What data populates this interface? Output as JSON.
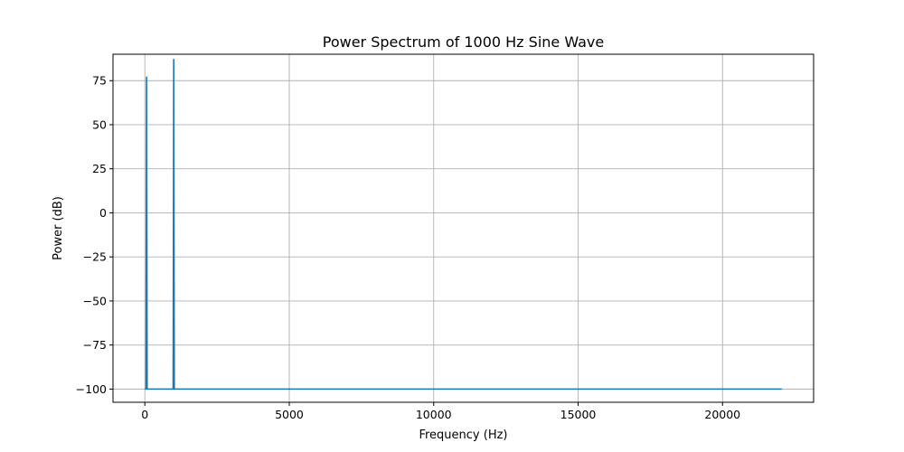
{
  "chart_data": {
    "type": "line",
    "title": "Power Spectrum of 1000 Hz Sine Wave",
    "xlabel": "Frequency (Hz)",
    "ylabel": "Power (dB)",
    "xlim": [
      -1102.5,
      23152.5
    ],
    "ylim": [
      -107.5,
      90
    ],
    "grid": true,
    "xticks": [
      0,
      5000,
      10000,
      15000,
      20000
    ],
    "xtick_labels": [
      "0",
      "5000",
      "10000",
      "15000",
      "20000"
    ],
    "yticks": [
      75,
      50,
      25,
      0,
      -25,
      -50,
      -75,
      -100
    ],
    "ytick_labels": [
      "75",
      "50",
      "25",
      "0",
      "−25",
      "−50",
      "−75",
      "−100"
    ],
    "series": [
      {
        "color": "#1f77b4",
        "x": [
          0,
          20,
          40,
          60,
          80,
          100,
          980,
          1000,
          1020,
          22050
        ],
        "y": [
          -100,
          -100,
          -100,
          77,
          -100,
          -100,
          -100,
          87,
          -100,
          -100
        ]
      }
    ]
  }
}
